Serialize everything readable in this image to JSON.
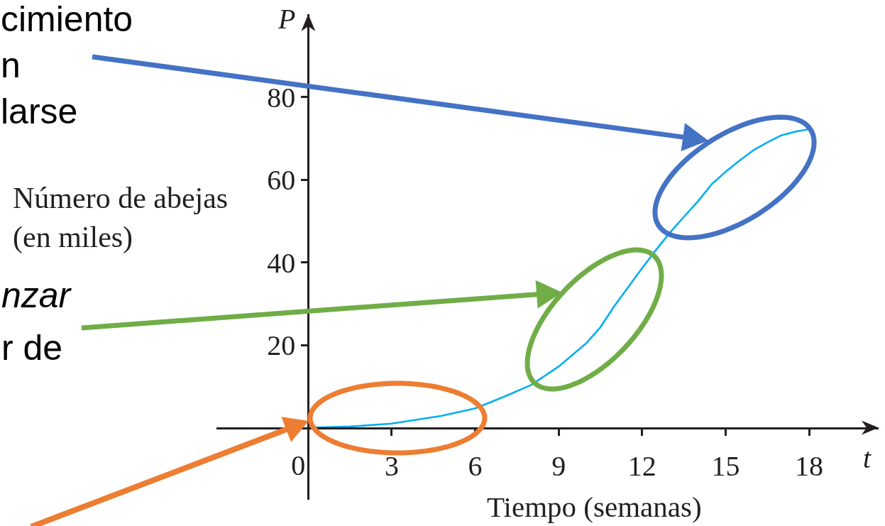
{
  "chart_data": {
    "type": "line",
    "xlabel": "Tiempo (semanas)",
    "ylabel": "Número de abejas\n(en miles)",
    "annotations": [
      "cimiento\nn\nlarse",
      "nzar",
      "r de",
      "P",
      "t"
    ],
    "x": [
      0,
      1.5,
      3,
      4.8,
      6,
      7,
      8,
      9,
      10,
      10.5,
      11,
      11.5,
      12,
      12.5,
      13,
      13.5,
      14,
      14.5,
      15,
      15.5,
      16,
      16.5,
      17,
      17.5,
      18
    ],
    "series": [
      {
        "color": "#00aeef",
        "values": [
          0,
          0.3,
          1,
          2.9,
          4.7,
          7.4,
          10.3,
          14.8,
          20.5,
          24.3,
          29.4,
          34,
          38.6,
          43,
          47.2,
          51,
          54.7,
          58.9,
          61.9,
          64.6,
          67.1,
          69,
          70.7,
          71.6,
          72.2
        ]
      }
    ],
    "xlim": [
      -3.3,
      20.5
    ],
    "ylim": [
      -17.4,
      100
    ],
    "xticks": [
      0,
      3,
      6,
      9,
      12,
      15,
      18
    ],
    "yticks": [
      20,
      40,
      60,
      80
    ],
    "line_style": "solid"
  }
}
